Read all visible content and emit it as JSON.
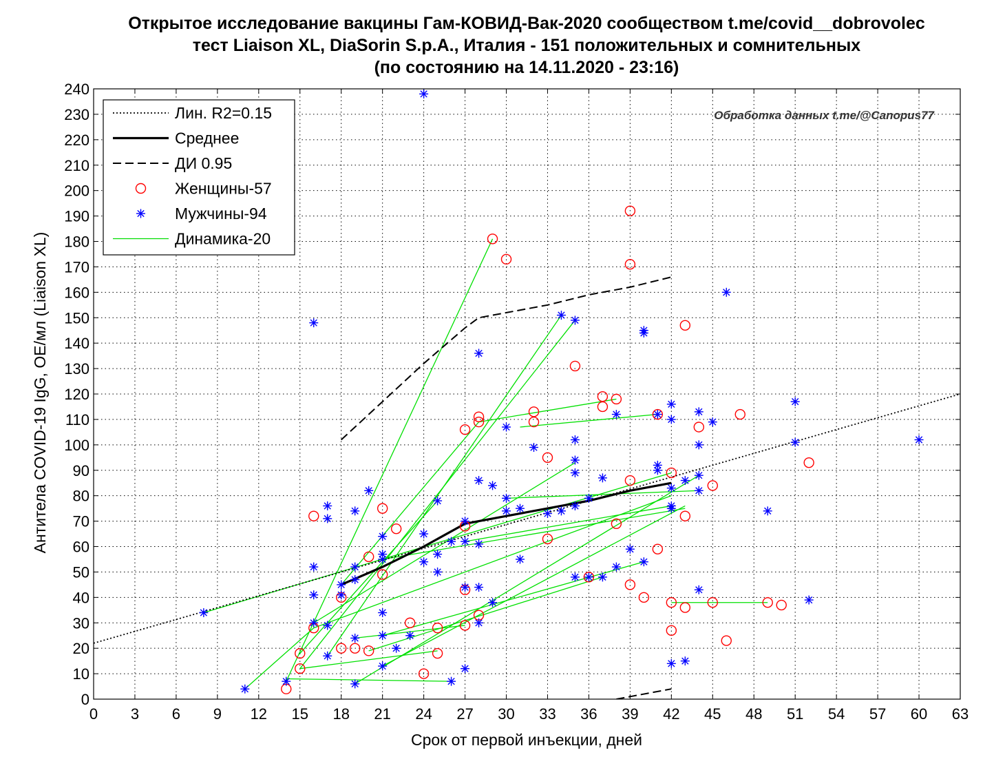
{
  "chart_data": {
    "type": "scatter",
    "title_lines": [
      "Открытое исследование вакцины Гам-КОВИД-Вак-2020 сообществом t.me/covid__dobrovolec",
      "тест Liaison XL, DiaSorin S.p.A., Италия - 151 положительных и сомнительных",
      "(по состоянию на 14.11.2020 - 23:16)"
    ],
    "xlabel": "Срок от первой инъекции, дней",
    "ylabel": "Антитела COVID-19 IgG, OE/мл (Liaison XL)",
    "watermark": "Обработка данных t.me/@Canopus77",
    "xlim": [
      0,
      63
    ],
    "ylim": [
      0,
      240
    ],
    "xticks": [
      0,
      3,
      6,
      9,
      12,
      15,
      18,
      21,
      24,
      27,
      30,
      33,
      36,
      39,
      42,
      45,
      48,
      51,
      54,
      57,
      60,
      63
    ],
    "yticks": [
      0,
      10,
      20,
      30,
      40,
      50,
      60,
      70,
      80,
      90,
      100,
      110,
      120,
      130,
      140,
      150,
      160,
      170,
      180,
      190,
      200,
      210,
      220,
      230,
      240
    ],
    "grid": true,
    "legend_position": "top-left",
    "legend": [
      {
        "label": "Лин. R2=0.15",
        "style": "dotted",
        "color": "#000000"
      },
      {
        "label": "Среднее",
        "style": "solid",
        "color": "#000000"
      },
      {
        "label": "ДИ 0.95",
        "style": "dashed",
        "color": "#000000"
      },
      {
        "label": "Женщины-57",
        "style": "circle",
        "color": "#ff0000"
      },
      {
        "label": "Мужчины-94",
        "style": "star",
        "color": "#0000ff"
      },
      {
        "label": "Динамика-20",
        "style": "line",
        "color": "#00dd00"
      }
    ],
    "linear_fit": {
      "x": [
        0,
        63
      ],
      "y": [
        22,
        120
      ]
    },
    "mean": {
      "x": [
        18,
        21,
        24,
        27,
        30,
        33,
        36,
        39,
        42
      ],
      "y": [
        45,
        52,
        60,
        69,
        72,
        75,
        78,
        82,
        85
      ]
    },
    "ci_upper": {
      "x": [
        18,
        21,
        24,
        27,
        28,
        33,
        36,
        39,
        42
      ],
      "y": [
        102,
        117,
        132,
        146,
        150,
        155,
        159,
        162,
        166
      ]
    },
    "ci_lower": {
      "x": [
        38,
        39,
        42
      ],
      "y": [
        0,
        1,
        4
      ]
    },
    "women": [
      [
        14,
        4
      ],
      [
        15,
        12
      ],
      [
        15,
        18
      ],
      [
        16,
        28
      ],
      [
        16,
        72
      ],
      [
        18,
        20
      ],
      [
        18,
        40
      ],
      [
        19,
        20
      ],
      [
        20,
        19
      ],
      [
        20,
        56
      ],
      [
        21,
        49
      ],
      [
        21,
        75
      ],
      [
        22,
        67
      ],
      [
        23,
        30
      ],
      [
        24,
        10
      ],
      [
        25,
        28
      ],
      [
        25,
        18
      ],
      [
        27,
        29
      ],
      [
        27,
        43
      ],
      [
        27,
        68
      ],
      [
        27,
        106
      ],
      [
        28,
        33
      ],
      [
        28,
        109
      ],
      [
        28,
        111
      ],
      [
        29,
        181
      ],
      [
        30,
        173
      ],
      [
        32,
        113
      ],
      [
        32,
        109
      ],
      [
        33,
        95
      ],
      [
        33,
        63
      ],
      [
        35,
        131
      ],
      [
        36,
        48
      ],
      [
        37,
        115
      ],
      [
        37,
        119
      ],
      [
        38,
        118
      ],
      [
        38,
        69
      ],
      [
        39,
        86
      ],
      [
        39,
        45
      ],
      [
        39,
        171
      ],
      [
        39,
        192
      ],
      [
        40,
        40
      ],
      [
        41,
        59
      ],
      [
        41,
        112
      ],
      [
        42,
        89
      ],
      [
        42,
        38
      ],
      [
        42,
        27
      ],
      [
        43,
        36
      ],
      [
        43,
        72
      ],
      [
        43,
        147
      ],
      [
        44,
        107
      ],
      [
        45,
        84
      ],
      [
        45,
        38
      ],
      [
        46,
        23
      ],
      [
        47,
        112
      ],
      [
        49,
        38
      ],
      [
        50,
        37
      ],
      [
        52,
        93
      ]
    ],
    "men": [
      [
        8,
        34
      ],
      [
        11,
        4
      ],
      [
        14,
        7
      ],
      [
        16,
        148
      ],
      [
        16,
        52
      ],
      [
        16,
        41
      ],
      [
        16,
        30
      ],
      [
        17,
        76
      ],
      [
        17,
        71
      ],
      [
        17,
        29
      ],
      [
        17,
        17
      ],
      [
        18,
        45
      ],
      [
        18,
        41
      ],
      [
        19,
        52
      ],
      [
        19,
        74
      ],
      [
        19,
        47
      ],
      [
        19,
        24
      ],
      [
        19,
        6
      ],
      [
        20,
        82
      ],
      [
        21,
        64
      ],
      [
        21,
        57
      ],
      [
        21,
        55
      ],
      [
        21,
        34
      ],
      [
        21,
        25
      ],
      [
        21,
        13
      ],
      [
        22,
        20
      ],
      [
        23,
        25
      ],
      [
        24,
        238
      ],
      [
        24,
        65
      ],
      [
        24,
        54
      ],
      [
        25,
        78
      ],
      [
        25,
        57
      ],
      [
        25,
        50
      ],
      [
        26,
        7
      ],
      [
        27,
        70
      ],
      [
        27,
        62
      ],
      [
        27,
        44
      ],
      [
        27,
        12
      ],
      [
        28,
        136
      ],
      [
        28,
        86
      ],
      [
        28,
        61
      ],
      [
        28,
        44
      ],
      [
        28,
        30
      ],
      [
        29,
        84
      ],
      [
        29,
        38
      ],
      [
        30,
        107
      ],
      [
        30,
        79
      ],
      [
        30,
        74
      ],
      [
        31,
        55
      ],
      [
        31,
        75
      ],
      [
        32,
        99
      ],
      [
        34,
        151
      ],
      [
        34,
        74
      ],
      [
        35,
        149
      ],
      [
        35,
        102
      ],
      [
        35,
        94
      ],
      [
        35,
        89
      ],
      [
        35,
        76
      ],
      [
        35,
        48
      ],
      [
        36,
        48
      ],
      [
        37,
        87
      ],
      [
        38,
        112
      ],
      [
        38,
        52
      ],
      [
        39,
        59
      ],
      [
        40,
        145
      ],
      [
        40,
        144
      ],
      [
        40,
        54
      ],
      [
        41,
        112
      ],
      [
        41,
        92
      ],
      [
        42,
        116
      ],
      [
        42,
        110
      ],
      [
        42,
        76
      ],
      [
        42,
        75
      ],
      [
        42,
        83
      ],
      [
        42,
        14
      ],
      [
        43,
        86
      ],
      [
        43,
        15
      ],
      [
        44,
        113
      ],
      [
        44,
        100
      ],
      [
        44,
        88
      ],
      [
        44,
        82
      ],
      [
        44,
        43
      ],
      [
        45,
        109
      ],
      [
        46,
        160
      ],
      [
        49,
        74
      ],
      [
        51,
        117
      ],
      [
        51,
        101
      ],
      [
        52,
        39
      ],
      [
        60,
        102
      ],
      [
        41,
        90
      ],
      [
        26,
        62
      ],
      [
        33,
        73
      ],
      [
        36,
        79
      ],
      [
        37,
        48
      ]
    ],
    "dynamics": [
      [
        [
          8,
          34
        ],
        [
          42,
          89
        ]
      ],
      [
        [
          11,
          4
        ],
        [
          16,
          28
        ]
      ],
      [
        [
          14,
          7
        ],
        [
          29,
          181
        ]
      ],
      [
        [
          14,
          8
        ],
        [
          26,
          7
        ]
      ],
      [
        [
          15,
          12
        ],
        [
          35,
          149
        ]
      ],
      [
        [
          15,
          18
        ],
        [
          25,
          78
        ]
      ],
      [
        [
          16,
          30
        ],
        [
          35,
          93
        ]
      ],
      [
        [
          16,
          28
        ],
        [
          42,
          80
        ]
      ],
      [
        [
          17,
          17
        ],
        [
          34,
          151
        ]
      ],
      [
        [
          18,
          45
        ],
        [
          28,
          109
        ]
      ],
      [
        [
          19,
          6
        ],
        [
          44,
          88
        ]
      ],
      [
        [
          19,
          24
        ],
        [
          27,
          29
        ]
      ],
      [
        [
          20,
          19
        ],
        [
          37,
          48
        ]
      ],
      [
        [
          21,
          25
        ],
        [
          40,
          54
        ]
      ],
      [
        [
          21,
          13
        ],
        [
          43,
          76
        ]
      ],
      [
        [
          21,
          55
        ],
        [
          43,
          75
        ]
      ],
      [
        [
          27,
          62
        ],
        [
          42,
          76
        ]
      ],
      [
        [
          28,
          109
        ],
        [
          38,
          118
        ]
      ],
      [
        [
          30,
          79
        ],
        [
          44,
          82
        ]
      ],
      [
        [
          31,
          107
        ],
        [
          41,
          112
        ]
      ],
      [
        [
          42,
          38
        ],
        [
          49,
          38
        ]
      ],
      [
        [
          15,
          12
        ],
        [
          25,
          19
        ]
      ]
    ]
  }
}
